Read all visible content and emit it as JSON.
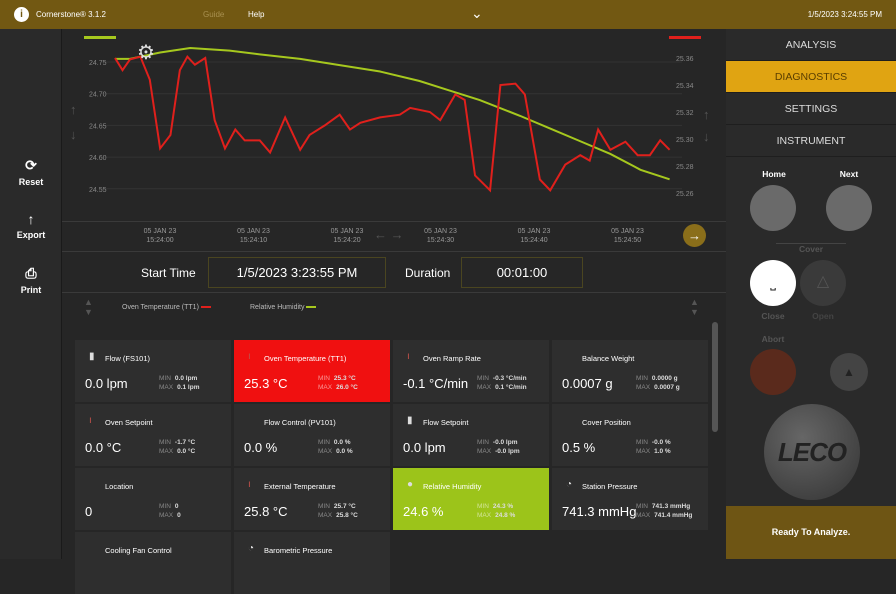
{
  "topbar": {
    "app": "Cornerstone® 3.1.2",
    "guide": "Guide",
    "help": "Help",
    "clock": "1/5/2023 3:24:55 PM"
  },
  "sidebar": {
    "reset": "Reset",
    "export": "Export",
    "print": "Print"
  },
  "chart_data": {
    "type": "line",
    "x_unit": "seconds since 15:23:55",
    "left_axis": {
      "ticks": [
        "24.75",
        "24.70",
        "24.65",
        "24.60",
        "24.55"
      ],
      "range": [
        24.53,
        24.78
      ]
    },
    "right_axis": {
      "ticks": [
        "25.36",
        "25.34",
        "25.32",
        "25.30",
        "25.28",
        "25.26"
      ],
      "range": [
        25.25,
        25.37
      ]
    },
    "x_ticks": [
      {
        "d": "05 JAN 23",
        "t": "15:24:00"
      },
      {
        "d": "05 JAN 23",
        "t": "15:24:10"
      },
      {
        "d": "05 JAN 23",
        "t": "15:24:20"
      },
      {
        "d": "05 JAN 23",
        "t": "15:24:30"
      },
      {
        "d": "05 JAN 23",
        "t": "15:24:40"
      },
      {
        "d": "05 JAN 23",
        "t": "15:24:50"
      }
    ],
    "series": [
      {
        "name": "Relative Humidity",
        "axis": "left",
        "color": "#a6c81e",
        "x": [
          0,
          1.6,
          4.8,
          8,
          12.2,
          15.4,
          19.7,
          23.9,
          28.2,
          32.4,
          35.6,
          38.8,
          43.1,
          46.3,
          49.5,
          52.7,
          55.9,
          59
        ],
        "y": [
          24.755,
          24.755,
          24.765,
          24.772,
          24.768,
          24.762,
          24.755,
          24.745,
          24.735,
          24.72,
          24.705,
          24.69,
          24.665,
          24.645,
          24.625,
          24.605,
          24.58,
          24.565
        ]
      },
      {
        "name": "Oven Temperature (TT1)",
        "axis": "right",
        "color": "#e0201c",
        "x": [
          0,
          0.8,
          1.6,
          2.7,
          3.7,
          4.8,
          5.9,
          6.9,
          7.7,
          8.5,
          9.6,
          10.6,
          11.7,
          12.8,
          13.8,
          15.4,
          16.5,
          18.1,
          19.7,
          20.7,
          22.3,
          23.9,
          25,
          26.1,
          28.2,
          30.3,
          31.4,
          33.5,
          34.6,
          36.2,
          37.2,
          38.3,
          39.9,
          41,
          42.6,
          43.6,
          45.2,
          46.3,
          47.9,
          49.5,
          50.5,
          51.4,
          52.7,
          54.3,
          55.6,
          56.9,
          58,
          59
        ],
        "y": [
          25.36,
          25.351,
          25.359,
          25.361,
          25.344,
          25.293,
          25.303,
          25.351,
          25.361,
          25.355,
          25.36,
          25.314,
          25.293,
          25.307,
          25.299,
          25.299,
          25.29,
          25.316,
          25.292,
          25.303,
          25.31,
          25.318,
          25.307,
          25.312,
          25.316,
          25.318,
          25.323,
          25.32,
          25.314,
          25.333,
          25.329,
          25.273,
          25.262,
          25.34,
          25.341,
          25.333,
          25.27,
          25.262,
          25.281,
          25.288,
          25.284,
          25.307,
          25.292,
          25.298,
          25.288,
          25.288,
          25.299,
          25.292
        ]
      }
    ]
  },
  "time": {
    "start_label": "Start Time",
    "start": "1/5/2023 3:23:55 PM",
    "duration_label": "Duration",
    "duration": "00:01:00"
  },
  "legend": {
    "a": "Oven Temperature (TT1)",
    "b": "Relative Humidity"
  },
  "tiles": [
    {
      "title": "Flow (FS101)",
      "value": "0.0 lpm",
      "min": "0.0 lpm",
      "max": "0.1 lpm",
      "icon": "flow-icon"
    },
    {
      "title": "Oven Temperature (TT1)",
      "value": "25.3 °C",
      "min": "25.3 °C",
      "max": "26.0 °C",
      "icon": "thermometer-icon",
      "bg": "#f01010"
    },
    {
      "title": "Oven Ramp Rate",
      "value": "-0.1 °C/min",
      "min": "-0.3 °C/min",
      "max": "0.1 °C/min",
      "icon": "thermometer-icon"
    },
    {
      "title": "Balance Weight",
      "value": "0.0007 g",
      "min": "0.0000 g",
      "max": "0.0007 g",
      "icon": ""
    },
    {
      "title": "Oven Setpoint",
      "value": "0.0 °C",
      "min": "-1.7 °C",
      "max": "0.0 °C",
      "icon": "thermometer-icon"
    },
    {
      "title": "Flow Control (PV101)",
      "value": "0.0 %",
      "min": "0.0 %",
      "max": "0.0 %",
      "icon": ""
    },
    {
      "title": "Flow Setpoint",
      "value": "0.0 lpm",
      "min": "-0.0 lpm",
      "max": "-0.0 lpm",
      "icon": "flow-icon"
    },
    {
      "title": "Cover Position",
      "value": "0.5 %",
      "min": "-0.0 %",
      "max": "1.0 %",
      "icon": ""
    },
    {
      "title": "Location",
      "value": "0",
      "min": "0",
      "max": "0",
      "icon": ""
    },
    {
      "title": "External Temperature",
      "value": "25.8 °C",
      "min": "25.7 °C",
      "max": "25.8 °C",
      "icon": "thermometer-icon"
    },
    {
      "title": "Relative Humidity",
      "value": "24.6 %",
      "min": "24.3 %",
      "max": "24.8 %",
      "icon": "droplet-icon",
      "bg": "#9cc41a"
    },
    {
      "title": "Station Pressure",
      "value": "741.3 mmHg",
      "min": "741.3 mmHg",
      "max": "741.4 mmHg",
      "icon": "gauge-icon"
    },
    {
      "title": "Cooling Fan Control",
      "value": "",
      "min": "",
      "max": "",
      "icon": ""
    },
    {
      "title": "Barometric Pressure",
      "value": "",
      "min": "",
      "max": "",
      "icon": "gauge-icon"
    }
  ],
  "min_label": "MIN",
  "max_label": "MAX",
  "nav": [
    "ANALYSIS",
    "DIAGNOSTICS",
    "SETTINGS",
    "INSTRUMENT"
  ],
  "controls": {
    "home": "Home",
    "next": "Next",
    "cover": "Cover",
    "close": "Close",
    "open": "Open",
    "abort": "Abort",
    "brand": "LECO"
  },
  "status": "Ready To Analyze."
}
